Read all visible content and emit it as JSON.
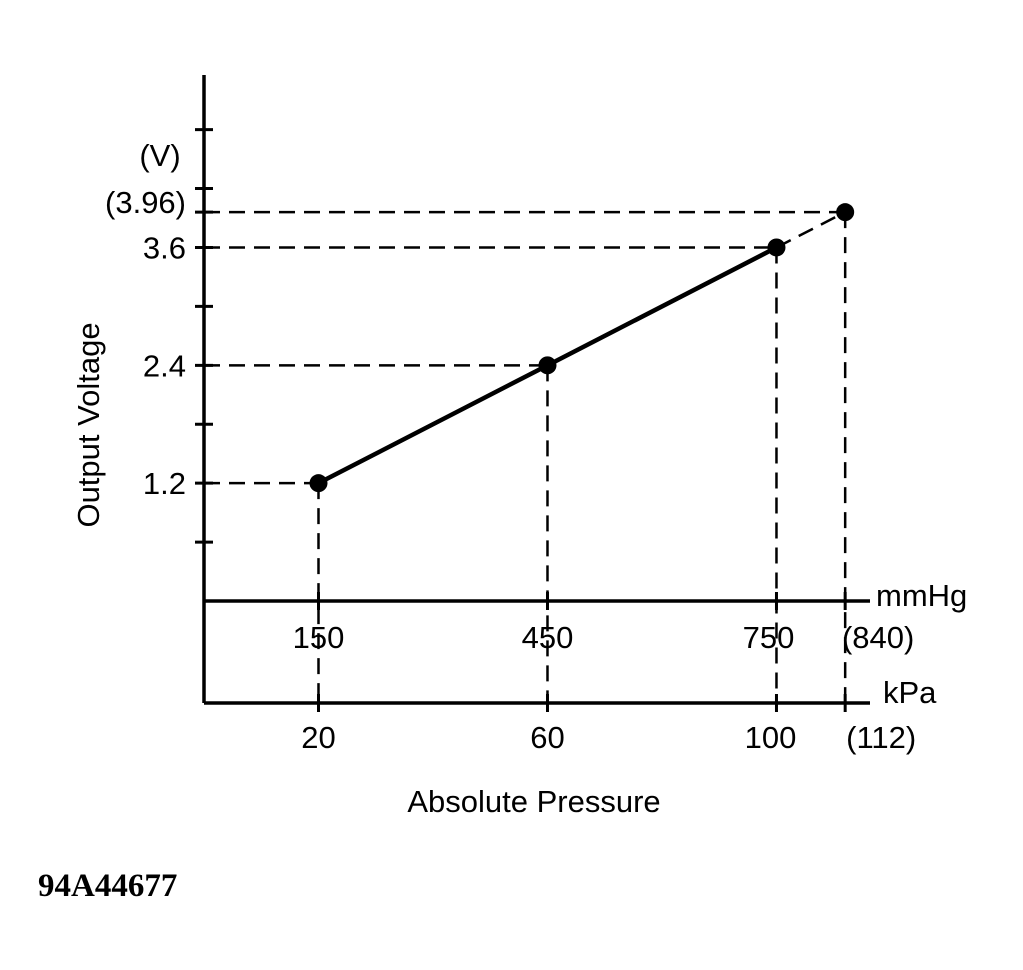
{
  "chart_data": {
    "type": "line",
    "title": "",
    "xlabel": "Absolute Pressure",
    "ylabel": "Output Voltage",
    "y_unit": "(V)",
    "x_units": {
      "primary": "mmHg",
      "secondary": "kPa"
    },
    "ylim": [
      0,
      4.8
    ],
    "xlim_mmHg": [
      0,
      900
    ],
    "grid": false,
    "legend": "none",
    "x": [
      150,
      450,
      750,
      840
    ],
    "x_kpa": [
      20,
      60,
      100,
      112
    ],
    "series": [
      {
        "values": [
          1.2,
          2.4,
          3.6,
          3.96
        ]
      }
    ],
    "x_tick_labels_mmHg": [
      "150",
      "450",
      "750",
      "(840)"
    ],
    "x_tick_labels_kPa": [
      "20",
      "60",
      "100",
      "(112)"
    ],
    "y_tick_labels": [
      "1.2",
      "2.4",
      "3.6",
      "(3.96)"
    ],
    "extrapolated_segment": {
      "from": [
        750,
        3.6
      ],
      "to": [
        840,
        3.96
      ],
      "style": "dashed"
    }
  },
  "figure_id": "94A44677"
}
